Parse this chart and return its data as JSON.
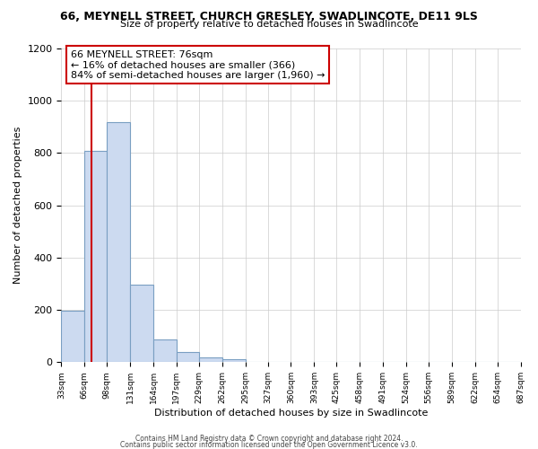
{
  "title": "66, MEYNELL STREET, CHURCH GRESLEY, SWADLINCOTE, DE11 9LS",
  "subtitle": "Size of property relative to detached houses in Swadlincote",
  "xlabel": "Distribution of detached houses by size in Swadlincote",
  "ylabel": "Number of detached properties",
  "bar_values": [
    197,
    810,
    920,
    295,
    88,
    38,
    18,
    10,
    0,
    0,
    0,
    0,
    0,
    0,
    0,
    0,
    0,
    0,
    0,
    0
  ],
  "bin_edges": [
    33,
    66,
    98,
    131,
    164,
    197,
    229,
    262,
    295,
    327,
    360,
    393,
    425,
    458,
    491,
    524,
    556,
    589,
    622,
    654,
    687
  ],
  "tick_labels": [
    "33sqm",
    "66sqm",
    "98sqm",
    "131sqm",
    "164sqm",
    "197sqm",
    "229sqm",
    "262sqm",
    "295sqm",
    "327sqm",
    "360sqm",
    "393sqm",
    "425sqm",
    "458sqm",
    "491sqm",
    "524sqm",
    "556sqm",
    "589sqm",
    "622sqm",
    "654sqm",
    "687sqm"
  ],
  "bar_color": "#ccdaf0",
  "bar_edge_color": "#7a9fc2",
  "property_line_x": 76,
  "property_line_color": "#cc0000",
  "annotation_line1": "66 MEYNELL STREET: 76sqm",
  "annotation_line2": "← 16% of detached houses are smaller (366)",
  "annotation_line3": "84% of semi-detached houses are larger (1,960) →",
  "annotation_box_edgecolor": "#cc0000",
  "ylim": [
    0,
    1200
  ],
  "yticks": [
    0,
    200,
    400,
    600,
    800,
    1000,
    1200
  ],
  "footer_line1": "Contains HM Land Registry data © Crown copyright and database right 2024.",
  "footer_line2": "Contains public sector information licensed under the Open Government Licence v3.0.",
  "background_color": "#ffffff",
  "grid_color": "#cccccc",
  "title_fontsize": 9,
  "subtitle_fontsize": 8,
  "xlabel_fontsize": 8,
  "ylabel_fontsize": 8,
  "tick_fontsize": 6.5,
  "ytick_fontsize": 8,
  "annotation_fontsize": 8,
  "footer_fontsize": 5.5
}
